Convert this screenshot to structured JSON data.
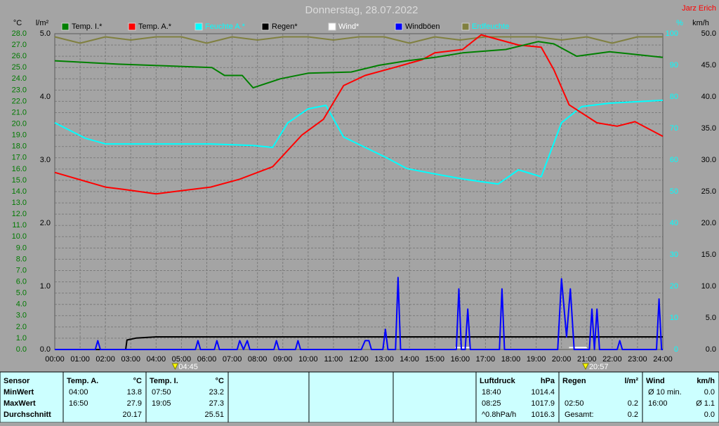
{
  "chart_data": {
    "type": "line",
    "title": "Donnerstag, 28.07.2022",
    "author": "Jarz Erich",
    "ylabel": "°C",
    "y2label": "l/m²",
    "y3label": "%",
    "y4label": "km/h",
    "grid": true,
    "xlim": [
      0,
      24
    ],
    "xticks": [
      {
        "value": 0,
        "label": "00:00"
      },
      {
        "value": 1,
        "label": "01:00"
      },
      {
        "value": 2,
        "label": "02:00"
      },
      {
        "value": 3,
        "label": "03:00"
      },
      {
        "value": 4,
        "label": "04:00"
      },
      {
        "value": 5,
        "label": "05:00"
      },
      {
        "value": 6,
        "label": "06:00"
      },
      {
        "value": 7,
        "label": "07:00"
      },
      {
        "value": 8,
        "label": "08:00"
      },
      {
        "value": 9,
        "label": "09:00"
      },
      {
        "value": 10,
        "label": "10:00"
      },
      {
        "value": 11,
        "label": "11:00"
      },
      {
        "value": 12,
        "label": "12:00"
      },
      {
        "value": 13,
        "label": "13:00"
      },
      {
        "value": 14,
        "label": "14:00"
      },
      {
        "value": 15,
        "label": "15:00"
      },
      {
        "value": 16,
        "label": "16:00"
      },
      {
        "value": 17,
        "label": "17:00"
      },
      {
        "value": 18,
        "label": "18:00"
      },
      {
        "value": 19,
        "label": "19:00"
      },
      {
        "value": 20,
        "label": "20:00"
      },
      {
        "value": 21,
        "label": "21:00"
      },
      {
        "value": 22,
        "label": "22:00"
      },
      {
        "value": 23,
        "label": "23:00"
      },
      {
        "value": 24,
        "label": "24:00"
      }
    ],
    "ylim": [
      0,
      28
    ],
    "yticks": [
      {
        "value": 0,
        "label": "0.0"
      },
      {
        "value": 1,
        "label": "1.0"
      },
      {
        "value": 2,
        "label": "2.0"
      },
      {
        "value": 3,
        "label": "3.0"
      },
      {
        "value": 4,
        "label": "4.0"
      },
      {
        "value": 5,
        "label": "5.0"
      },
      {
        "value": 6,
        "label": "6.0"
      },
      {
        "value": 7,
        "label": "7.0"
      },
      {
        "value": 8,
        "label": "8.0"
      },
      {
        "value": 9,
        "label": "9.0"
      },
      {
        "value": 10,
        "label": "10.0"
      },
      {
        "value": 11,
        "label": "11.0"
      },
      {
        "value": 12,
        "label": "12.0"
      },
      {
        "value": 13,
        "label": "13.0"
      },
      {
        "value": 14,
        "label": "14.0"
      },
      {
        "value": 15,
        "label": "15.0"
      },
      {
        "value": 16,
        "label": "16.0"
      },
      {
        "value": 17,
        "label": "17.0"
      },
      {
        "value": 18,
        "label": "18.0"
      },
      {
        "value": 19,
        "label": "19.0"
      },
      {
        "value": 20,
        "label": "20.0"
      },
      {
        "value": 21,
        "label": "21.0"
      },
      {
        "value": 22,
        "label": "22.0"
      },
      {
        "value": 23,
        "label": "23.0"
      },
      {
        "value": 24,
        "label": "24.0"
      },
      {
        "value": 25,
        "label": "25.0"
      },
      {
        "value": 26,
        "label": "26.0"
      },
      {
        "value": 27,
        "label": "27.0"
      },
      {
        "value": 28,
        "label": "28.0"
      }
    ],
    "y2lim": [
      0,
      5
    ],
    "y2ticks": [
      {
        "value": 0,
        "label": "0.0"
      },
      {
        "value": 1,
        "label": "1.0"
      },
      {
        "value": 2,
        "label": "2.0"
      },
      {
        "value": 3,
        "label": "3.0"
      },
      {
        "value": 4,
        "label": "4.0"
      },
      {
        "value": 5,
        "label": "5.0"
      }
    ],
    "y3lim": [
      0,
      100
    ],
    "y3ticks": [
      0,
      10,
      20,
      30,
      40,
      50,
      60,
      70,
      80,
      90,
      100
    ],
    "y4lim": [
      0,
      50
    ],
    "y4ticks": [
      {
        "value": 0,
        "label": "0.0"
      },
      {
        "value": 5,
        "label": "5.0"
      },
      {
        "value": 10,
        "label": "10.0"
      },
      {
        "value": 15,
        "label": "15.0"
      },
      {
        "value": 20,
        "label": "20.0"
      },
      {
        "value": 25,
        "label": "25.0"
      },
      {
        "value": 30,
        "label": "30.0"
      },
      {
        "value": 35,
        "label": "35.0"
      },
      {
        "value": 40,
        "label": "40.0"
      },
      {
        "value": 45,
        "label": "45.0"
      },
      {
        "value": 50,
        "label": "50.0"
      }
    ],
    "series": [
      {
        "name": "Temp. I.*",
        "color": "#008000",
        "label_color": "#000000",
        "axis": "y",
        "x": [
          0,
          2.5,
          6.2,
          6.7,
          7.4,
          7.83,
          8.9,
          10,
          11.7,
          12.8,
          13.9,
          15,
          16.1,
          17.8,
          19.08,
          19.7,
          20.6,
          21.9,
          24
        ],
        "values": [
          25.6,
          25.3,
          25.0,
          24.3,
          24.3,
          23.2,
          24.0,
          24.5,
          24.6,
          25.2,
          25.6,
          25.9,
          26.3,
          26.6,
          27.3,
          27.1,
          26.0,
          26.4,
          25.9
        ]
      },
      {
        "name": "Temp. A.*",
        "color": "#ff0000",
        "label_color": "#000000",
        "axis": "y",
        "x": [
          0,
          2,
          2.7,
          4,
          6.15,
          7.3,
          8.6,
          9.75,
          10.6,
          11.4,
          12.25,
          13.4,
          14.5,
          15,
          16.1,
          16.83,
          18.3,
          19.2,
          19.7,
          20.3,
          21.4,
          22.2,
          22.9,
          24
        ],
        "values": [
          15.7,
          14.4,
          14.2,
          13.8,
          14.4,
          15.1,
          16.2,
          19.0,
          20.4,
          23.4,
          24.3,
          25.0,
          25.7,
          26.3,
          26.6,
          27.9,
          27.0,
          26.8,
          24.8,
          21.7,
          20.1,
          19.8,
          20.2,
          18.9
        ]
      },
      {
        "name": "Feuchte A.*",
        "color": "#00ffff",
        "label_color": "#00ffff",
        "axis": "y3",
        "x": [
          0,
          1.2,
          2,
          6.15,
          7.8,
          8.6,
          9.2,
          10,
          10.7,
          11.4,
          12.25,
          13.1,
          13.9,
          15,
          16.1,
          17.5,
          18.3,
          19.2,
          20,
          20.8,
          21.9,
          24
        ],
        "values": [
          71.8,
          66.9,
          65.1,
          65.1,
          64.6,
          64.0,
          71.8,
          76.2,
          77.3,
          67.3,
          64.0,
          60.7,
          57.3,
          55.6,
          54.0,
          52.4,
          56.9,
          54.7,
          71.8,
          76.9,
          78.0,
          78.9
        ]
      },
      {
        "name": "Regen*",
        "color": "#000000",
        "label_color": "#000000",
        "axis": "y2",
        "x": [
          0,
          2.8,
          2.85,
          3.2,
          4,
          24
        ],
        "values": [
          0,
          0,
          0.15,
          0.18,
          0.2,
          0.2
        ]
      },
      {
        "name": "Wind*",
        "color": "#ffffff",
        "label_color": "#ffffff",
        "axis": "y4",
        "x": [
          15.8,
          16.4,
          16.5,
          20.3,
          21.0
        ],
        "values": [
          0.3,
          0.3,
          null,
          0.3,
          0.3
        ]
      },
      {
        "name": "Windböen",
        "color": "#0000ff",
        "label_color": "#000000",
        "axis": "y4",
        "x": [
          0,
          1.6,
          1.7,
          1.8,
          5.55,
          5.65,
          5.75,
          6.3,
          6.4,
          6.5,
          7.2,
          7.3,
          7.45,
          7.6,
          7.7,
          8.65,
          8.75,
          8.85,
          9.5,
          9.6,
          9.7,
          12.1,
          12.25,
          12.4,
          12.5,
          12.95,
          13.05,
          13.15,
          13.45,
          13.55,
          13.65,
          15.85,
          15.95,
          16.05,
          16.2,
          16.3,
          16.4,
          17.55,
          17.65,
          17.75,
          19.85,
          20.0,
          20.2,
          20.35,
          20.5,
          21.1,
          21.2,
          21.3,
          21.4,
          21.5,
          22.2,
          22.3,
          22.4,
          23.75,
          23.85,
          23.95,
          24
        ],
        "values": [
          0,
          0,
          1.4,
          0,
          0,
          1.4,
          0,
          0,
          1.4,
          0,
          0,
          1.4,
          0,
          1.4,
          0,
          0,
          1.4,
          0,
          0,
          1.4,
          0,
          0,
          1.4,
          1.4,
          0,
          0,
          3.2,
          0,
          0,
          11.4,
          0,
          0,
          9.6,
          0,
          0,
          6.4,
          0,
          0,
          9.6,
          0,
          0,
          11.2,
          2,
          9.6,
          0,
          0,
          6.4,
          0,
          6.4,
          0,
          0,
          1.4,
          0,
          0,
          8,
          0,
          0
        ]
      },
      {
        "name": "Erdfeuchte",
        "color": "#808040",
        "label_color": "#00ffff",
        "axis": "y3",
        "x": [
          0,
          1,
          2,
          3,
          4,
          5,
          6,
          7,
          8,
          9,
          10,
          11,
          12,
          13,
          14,
          15,
          16,
          17,
          18,
          19,
          20,
          21,
          22,
          23,
          24
        ],
        "values": [
          99,
          97,
          99,
          98,
          99,
          99,
          97,
          99,
          98,
          99,
          99,
          98,
          99,
          99,
          97,
          99,
          98,
          99,
          99,
          99,
          98,
          99,
          97,
          99,
          99
        ]
      }
    ],
    "sun_markers": [
      {
        "value": 4.75,
        "label": "04:45"
      },
      {
        "value": 20.95,
        "label": "20:57"
      }
    ]
  },
  "stats": {
    "row_labels": [
      "Sensor",
      "MinWert",
      "MaxWert",
      "Durchschnitt"
    ],
    "groups": [
      {
        "name": "Temp. A.",
        "unit": "°C",
        "rows": [
          [
            "04:00",
            "13.8"
          ],
          [
            "16:50",
            "27.9"
          ],
          [
            null,
            "20.17"
          ]
        ]
      },
      {
        "name": "Temp. I.",
        "unit": "°C",
        "rows": [
          [
            "07:50",
            "23.2"
          ],
          [
            "19:05",
            "27.3"
          ],
          [
            null,
            "25.51"
          ]
        ]
      },
      {
        "name": "Luftdruck",
        "unit": "hPa",
        "rows": [
          [
            "18:40",
            "1014.4"
          ],
          [
            "08:25",
            "1017.9"
          ],
          [
            "^0.8hPa/h",
            "1016.3"
          ]
        ]
      },
      {
        "name": "Regen",
        "unit": "l/m²",
        "rows": [
          [
            null,
            null
          ],
          [
            "02:50",
            "0.2"
          ],
          [
            "Gesamt:",
            "0.2"
          ]
        ]
      },
      {
        "name": "Wind",
        "unit": "km/h",
        "rows": [
          [
            "Ø 10 min.",
            "0.0"
          ],
          [
            "16:00",
            "Ø 1.1"
          ],
          [
            null,
            "0.0"
          ]
        ]
      }
    ]
  }
}
